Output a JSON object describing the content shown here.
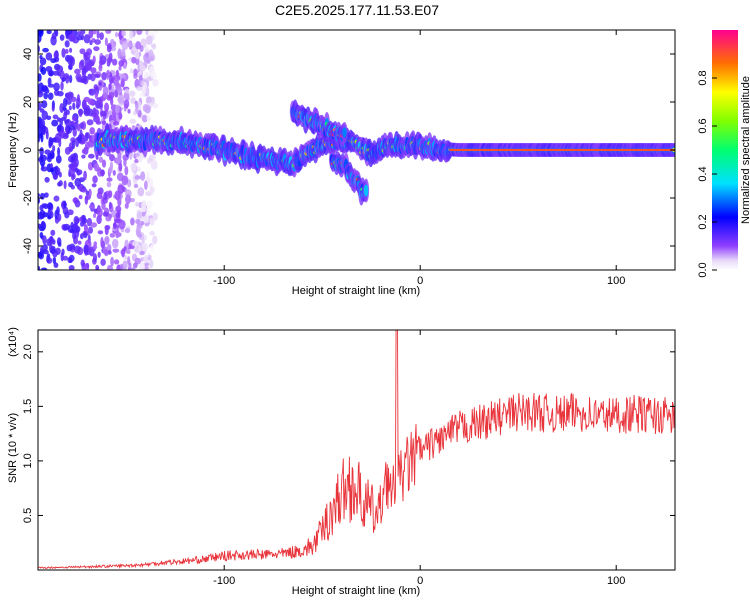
{
  "title": "C2E5.2025.177.11.53.E07",
  "chart_data": [
    {
      "type": "heatmap",
      "xlabel": "Height of straight line (km)",
      "ylabel": "Frequency (Hz)",
      "xlim": [
        -195,
        130
      ],
      "ylim": [
        -50,
        50
      ],
      "xticks": [
        -100,
        0,
        100
      ],
      "yticks": [
        -40,
        -20,
        0,
        20,
        40
      ],
      "colorbar": {
        "label": "Normalized spectral amplitude",
        "range": [
          0,
          1
        ],
        "ticks": [
          "0.0",
          "0.2",
          "0.4",
          "0.6",
          "0.8"
        ]
      },
      "features": [
        {
          "name": "main",
          "points": [
            [
              -165,
              4
            ],
            [
              -150,
              4
            ],
            [
              -130,
              4
            ],
            [
              -110,
              2
            ],
            [
              -90,
              -2
            ],
            [
              -75,
              -5
            ],
            [
              -65,
              -6
            ],
            [
              -55,
              0
            ],
            [
              -45,
              4
            ],
            [
              -35,
              3
            ],
            [
              -25,
              -2
            ],
            [
              -15,
              2
            ],
            [
              0,
              1
            ],
            [
              20,
              0
            ],
            [
              60,
              0
            ],
            [
              100,
              0
            ],
            [
              130,
              0
            ]
          ]
        },
        {
          "name": "upper",
          "points": [
            [
              -65,
              15
            ],
            [
              -55,
              12
            ],
            [
              -45,
              8
            ],
            [
              -38,
              6
            ]
          ]
        },
        {
          "name": "lower",
          "points": [
            [
              -45,
              -4
            ],
            [
              -38,
              -8
            ],
            [
              -32,
              -14
            ],
            [
              -27,
              -19
            ]
          ]
        }
      ]
    },
    {
      "type": "line",
      "xlabel": "Height of straight line (km)",
      "ylabel": "SNR (10 * v/v)",
      "scale_note": "(x10⁴)",
      "xlim": [
        -195,
        130
      ],
      "ylim": [
        0,
        2.2
      ],
      "xticks": [
        -100,
        0,
        100
      ],
      "yticks": [
        "0.5",
        "1.0",
        "1.5",
        "2.0"
      ],
      "color": "#e8333a",
      "series": [
        {
          "x": [
            -195,
            -170,
            -150,
            -140,
            -130,
            -120,
            -110,
            -100,
            -90,
            -80,
            -70,
            -60,
            -55,
            -50,
            -45,
            -40,
            -35,
            -30,
            -25,
            -22,
            -20,
            -18,
            -15,
            -10,
            -5,
            0,
            5,
            10,
            15,
            20,
            25,
            30,
            40,
            50,
            60,
            70,
            80,
            90,
            100,
            110,
            120,
            130
          ],
          "values": [
            0.02,
            0.03,
            0.04,
            0.05,
            0.07,
            0.08,
            0.1,
            0.13,
            0.14,
            0.14,
            0.15,
            0.18,
            0.22,
            0.35,
            0.55,
            0.7,
            0.8,
            0.65,
            0.55,
            0.5,
            0.55,
            0.9,
            0.7,
            0.85,
            1.0,
            1.08,
            1.15,
            1.2,
            1.25,
            1.3,
            1.32,
            1.35,
            1.4,
            1.45,
            1.45,
            1.42,
            1.45,
            1.42,
            1.42,
            1.43,
            1.42,
            1.4
          ]
        }
      ]
    }
  ]
}
